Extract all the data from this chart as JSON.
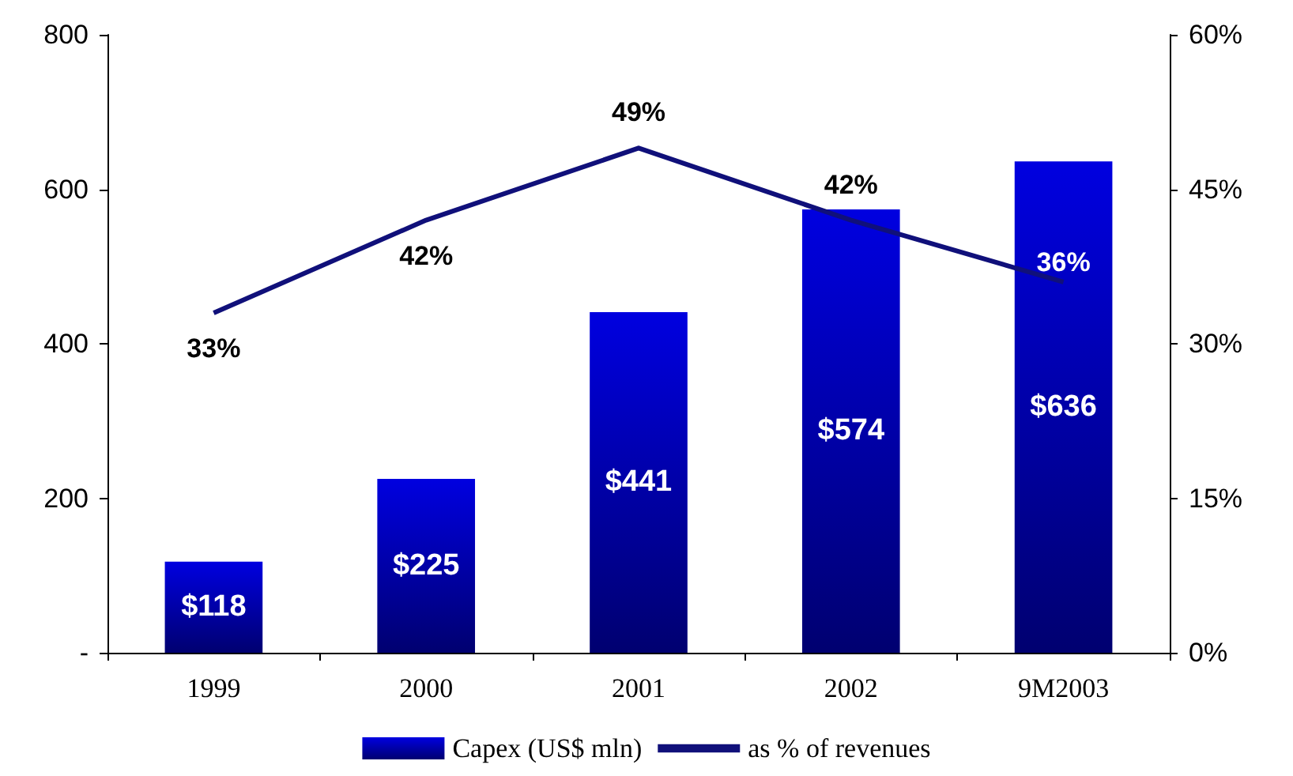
{
  "chart_data": {
    "type": "bar",
    "categories": [
      "1999",
      "2000",
      "2001",
      "2002",
      "9M2003"
    ],
    "series": [
      {
        "name": "Capex (US$ mln)",
        "color": "#0000e0",
        "values": [
          118,
          225,
          441,
          574,
          636
        ],
        "value_labels": [
          "$118",
          "$225",
          "$441",
          "$574",
          "$636"
        ]
      },
      {
        "name": "as % of revenues",
        "type": "line",
        "axis": "y2",
        "color": "#10107a",
        "values": [
          33,
          42,
          49,
          42,
          36
        ],
        "value_labels": [
          "33%",
          "42%",
          "49%",
          "42%",
          "36%"
        ],
        "marker": "none"
      }
    ],
    "ylim": [
      0,
      800
    ],
    "yticks": [
      {
        "value": 0,
        "label": "-"
      },
      200,
      400,
      600,
      800
    ],
    "y2lim": [
      0,
      60
    ],
    "y2ticks": [
      {
        "value": 0,
        "label": "0%"
      },
      {
        "value": 15,
        "label": "15%"
      },
      {
        "value": 30,
        "label": "30%"
      },
      {
        "value": 45,
        "label": "45%"
      },
      {
        "value": 60,
        "label": "60%"
      }
    ],
    "grid": false,
    "legend": "bottom"
  }
}
